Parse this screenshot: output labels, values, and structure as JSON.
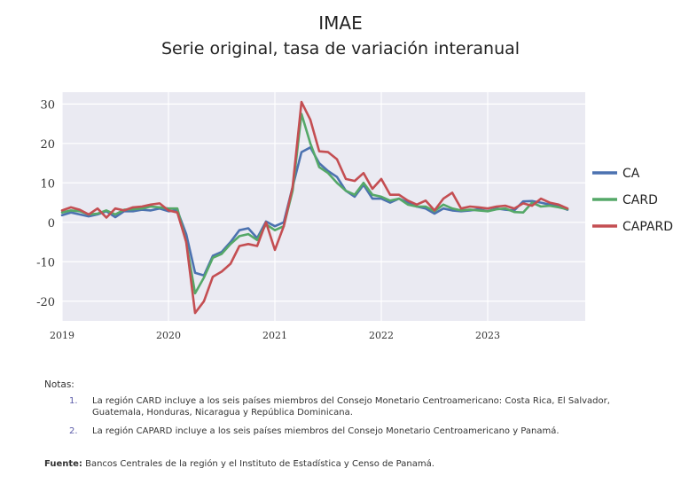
{
  "title": "IMAE",
  "subtitle": "Serie original, tasa de variación interanual",
  "notes": {
    "label": "Notas:",
    "items": [
      {
        "num": "1.",
        "text": "La región CARD incluye a los seis países miembros del Consejo Monetario Centroamericano: Costa Rica, El Salvador, Guatemala, Honduras, Nicaragua y República Dominicana."
      },
      {
        "num": "2.",
        "text": "La región CAPARD incluye a los seis países miembros del Consejo Monetario Centroamericano y Panamá."
      }
    ]
  },
  "source": {
    "label": "Fuente:",
    "text": " Bancos Centrales de la región y el Instituto de Estadística y Censo de Panamá."
  },
  "chart_data": {
    "type": "line",
    "title": "IMAE",
    "subtitle": "Serie original, tasa de variación interanual",
    "xlabel": "",
    "ylabel": "",
    "x_ticks": [
      "2019",
      "2020",
      "2021",
      "2022",
      "2023"
    ],
    "y_ticks": [
      30,
      20,
      10,
      0,
      -10,
      -20
    ],
    "ylim": [
      -25,
      33
    ],
    "xlim": [
      "2019-01",
      "2023-12"
    ],
    "grid": true,
    "legend_position": "right",
    "colors": {
      "CA": "#4c72b0",
      "CARD": "#55a868",
      "CAPARD": "#c44e52",
      "background": "#eaeaf2"
    },
    "x": [
      "2019-01",
      "2019-02",
      "2019-03",
      "2019-04",
      "2019-05",
      "2019-06",
      "2019-07",
      "2019-08",
      "2019-09",
      "2019-10",
      "2019-11",
      "2019-12",
      "2020-01",
      "2020-02",
      "2020-03",
      "2020-04",
      "2020-05",
      "2020-06",
      "2020-07",
      "2020-08",
      "2020-09",
      "2020-10",
      "2020-11",
      "2020-12",
      "2021-01",
      "2021-02",
      "2021-03",
      "2021-04",
      "2021-05",
      "2021-06",
      "2021-07",
      "2021-08",
      "2021-09",
      "2021-10",
      "2021-11",
      "2021-12",
      "2022-01",
      "2022-02",
      "2022-03",
      "2022-04",
      "2022-05",
      "2022-06",
      "2022-07",
      "2022-08",
      "2022-09",
      "2022-10",
      "2022-11",
      "2022-12",
      "2023-01",
      "2023-02",
      "2023-03",
      "2023-04",
      "2023-05",
      "2023-06",
      "2023-07",
      "2023-08",
      "2023-09",
      "2023-10"
    ],
    "series": [
      {
        "name": "CA",
        "color": "#4c72b0",
        "values": [
          1.8,
          2.5,
          2.0,
          1.5,
          2.0,
          2.8,
          1.3,
          2.8,
          2.8,
          3.2,
          3.0,
          3.5,
          2.8,
          3.0,
          -3.0,
          -12.8,
          -13.5,
          -8.5,
          -7.5,
          -5.0,
          -2.0,
          -1.5,
          -4.0,
          0.2,
          -1.0,
          0.0,
          9.0,
          17.8,
          19.0,
          15.0,
          13.0,
          11.5,
          8.0,
          6.5,
          9.5,
          6.0,
          6.0,
          5.0,
          6.0,
          5.0,
          4.0,
          3.5,
          2.2,
          3.5,
          3.0,
          2.8,
          3.0,
          3.3,
          2.8,
          3.5,
          3.2,
          3.0,
          5.3,
          5.4,
          5.0,
          4.5,
          4.0,
          3.2
        ]
      },
      {
        "name": "CARD",
        "color": "#55a868",
        "values": [
          2.5,
          3.0,
          2.8,
          2.0,
          2.2,
          3.0,
          2.0,
          3.2,
          3.3,
          3.5,
          4.0,
          3.8,
          3.5,
          3.5,
          -5.0,
          -18.0,
          -14.0,
          -9.0,
          -8.0,
          -5.5,
          -3.5,
          -3.0,
          -4.5,
          -0.5,
          -2.0,
          -1.0,
          8.0,
          27.5,
          20.0,
          14.0,
          12.5,
          10.0,
          8.0,
          7.0,
          10.0,
          7.0,
          6.5,
          5.5,
          6.0,
          4.5,
          4.0,
          4.0,
          2.8,
          4.5,
          3.5,
          3.0,
          3.2,
          3.0,
          2.8,
          3.3,
          3.5,
          2.6,
          2.5,
          5.0,
          4.0,
          4.2,
          3.8,
          3.3
        ]
      },
      {
        "name": "CAPARD",
        "color": "#c44e52",
        "values": [
          3.0,
          3.8,
          3.2,
          2.0,
          3.5,
          1.2,
          3.5,
          3.0,
          3.8,
          4.0,
          4.5,
          4.8,
          3.0,
          2.5,
          -5.0,
          -23.0,
          -20.0,
          -13.8,
          -12.5,
          -10.5,
          -6.0,
          -5.5,
          -6.0,
          0.0,
          -7.0,
          -1.0,
          9.0,
          30.5,
          26.0,
          18.0,
          17.8,
          16.0,
          11.0,
          10.5,
          12.5,
          8.5,
          11.0,
          7.0,
          7.0,
          5.5,
          4.5,
          5.5,
          3.0,
          6.0,
          7.5,
          3.5,
          4.0,
          3.8,
          3.5,
          4.0,
          4.2,
          3.5,
          4.8,
          4.2,
          6.0,
          5.0,
          4.5,
          3.5
        ]
      }
    ]
  }
}
